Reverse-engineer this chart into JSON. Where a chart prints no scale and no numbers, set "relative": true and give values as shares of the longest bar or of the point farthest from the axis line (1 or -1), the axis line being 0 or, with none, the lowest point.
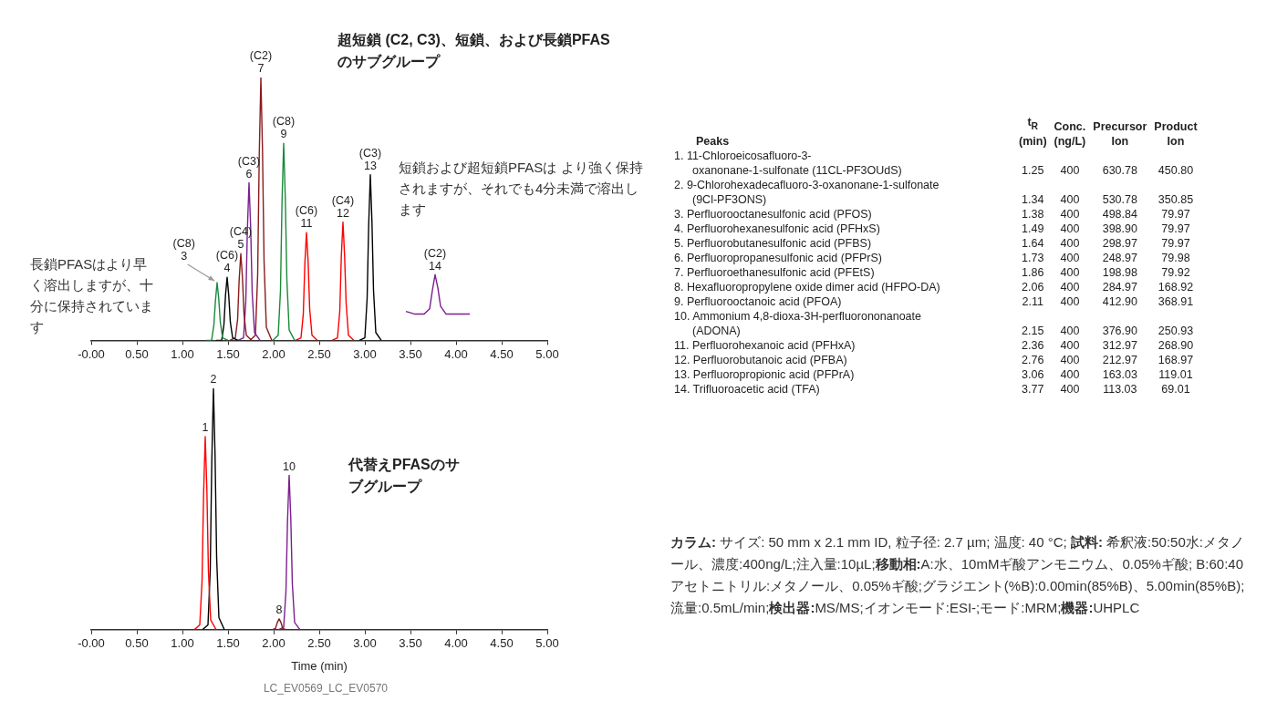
{
  "chart_data": [
    {
      "type": "line",
      "relative": true,
      "title": "超短鎖 (C2, C3)、短鎖、および長鎖PFASのサブグループ",
      "xlim": [
        0,
        5
      ],
      "xticks": [
        {
          "value": 0,
          "label": "-0.00"
        },
        {
          "value": 0.5,
          "label": "0.50"
        },
        {
          "value": 1,
          "label": "1.00"
        },
        {
          "value": 1.5,
          "label": "1.50"
        },
        {
          "value": 2,
          "label": "2.00"
        },
        {
          "value": 2.5,
          "label": "2.50"
        },
        {
          "value": 3,
          "label": "3.00"
        },
        {
          "value": 3.5,
          "label": "3.50"
        },
        {
          "value": 4,
          "label": "4.00"
        },
        {
          "value": 4.5,
          "label": "4.50"
        },
        {
          "value": 5,
          "label": "5.00"
        }
      ],
      "series": [
        {
          "color": "#1a8a3a",
          "x": [
            1.26,
            1.32,
            1.345,
            1.362,
            1.38,
            1.398,
            1.415,
            1.44,
            1.5
          ],
          "values": [
            0,
            0,
            0.06,
            0.15,
            0.22,
            0.16,
            0.07,
            0.01,
            0
          ]
        },
        {
          "color": "#000000",
          "x": [
            1.37,
            1.43,
            1.455,
            1.472,
            1.49,
            1.508,
            1.525,
            1.55,
            1.61
          ],
          "values": [
            0,
            0,
            0.06,
            0.17,
            0.24,
            0.17,
            0.07,
            0.01,
            0
          ]
        },
        {
          "color": "#8b1a1a",
          "x": [
            1.52,
            1.58,
            1.605,
            1.622,
            1.64,
            1.658,
            1.675,
            1.7,
            1.76
          ],
          "values": [
            0,
            0.01,
            0.08,
            0.23,
            0.33,
            0.24,
            0.1,
            0.02,
            0
          ]
        },
        {
          "color": "#7b1f8f",
          "x": [
            1.61,
            1.67,
            1.695,
            1.712,
            1.73,
            1.748,
            1.765,
            1.79,
            1.85
          ],
          "values": [
            0,
            0.01,
            0.15,
            0.42,
            0.6,
            0.43,
            0.18,
            0.03,
            0
          ]
        },
        {
          "color": "#8b1a1a",
          "x": [
            1.74,
            1.8,
            1.825,
            1.842,
            1.86,
            1.878,
            1.895,
            1.92,
            1.98
          ],
          "values": [
            0,
            0.02,
            0.25,
            0.7,
            1,
            0.72,
            0.3,
            0.05,
            0
          ]
        },
        {
          "color": "#1a8a3a",
          "x": [
            1.99,
            2.05,
            2.075,
            2.092,
            2.11,
            2.128,
            2.145,
            2.17,
            2.23
          ],
          "values": [
            0,
            0.02,
            0.19,
            0.53,
            0.75,
            0.54,
            0.23,
            0.04,
            0
          ]
        },
        {
          "color": "#ff0000",
          "x": [
            2.24,
            2.3,
            2.325,
            2.342,
            2.36,
            2.378,
            2.395,
            2.42,
            2.48
          ],
          "values": [
            0,
            0.01,
            0.1,
            0.29,
            0.41,
            0.3,
            0.12,
            0.02,
            0
          ]
        },
        {
          "color": "#ff0000",
          "x": [
            2.64,
            2.7,
            2.725,
            2.742,
            2.76,
            2.778,
            2.795,
            2.82,
            2.88
          ],
          "values": [
            0,
            0.01,
            0.11,
            0.32,
            0.45,
            0.32,
            0.14,
            0.02,
            0
          ]
        },
        {
          "color": "#000000",
          "x": [
            2.94,
            3,
            3.025,
            3.042,
            3.06,
            3.078,
            3.095,
            3.12,
            3.18
          ],
          "values": [
            0,
            0.01,
            0.16,
            0.44,
            0.63,
            0.45,
            0.19,
            0.03,
            0
          ]
        },
        {
          "color": "#7b1f8f",
          "x": [
            3.45,
            3.55,
            3.65,
            3.71,
            3.74,
            3.77,
            3.8,
            3.83,
            3.89,
            4.0,
            4.15
          ],
          "values": [
            0.11,
            0.1,
            0.1,
            0.12,
            0.19,
            0.25,
            0.2,
            0.13,
            0.1,
            0.1,
            0.1
          ]
        }
      ],
      "annotations": [
        "短鎖および超短鎖PFASは より強く保持されますが、それでも4分未満で溶出します",
        "長鎖PFASはより早く溶出しますが、十分に保持されています",
        {
          "text": "(C6)\n4",
          "x": 1.49,
          "y": 0.24
        },
        {
          "text": "(C4)\n5",
          "x": 1.64,
          "y": 0.33
        },
        {
          "text": "(C3)\n6",
          "x": 1.73,
          "y": 0.6
        },
        {
          "text": "(C2)\n7",
          "x": 1.86,
          "y": 1
        },
        {
          "text": "(C8)\n9",
          "x": 2.11,
          "y": 0.75
        },
        {
          "text": "(C6)\n11",
          "x": 2.36,
          "y": 0.41
        },
        {
          "text": "(C4)\n12",
          "x": 2.76,
          "y": 0.45
        },
        {
          "text": "(C3)\n13",
          "x": 3.06,
          "y": 0.63
        },
        {
          "text": "(C2)\n14",
          "x": 3.77,
          "y": 0.25
        },
        {
          "text": "(C8)\n3",
          "x": 1.38,
          "y": 0.22
        }
      ]
    },
    {
      "type": "line",
      "relative": true,
      "title": "代替えPFASのサブグループ",
      "xlabel": "Time (min)",
      "xlim": [
        0,
        5
      ],
      "xticks": [
        {
          "value": 0,
          "label": "-0.00"
        },
        {
          "value": 0.5,
          "label": "0.50"
        },
        {
          "value": 1,
          "label": "1.00"
        },
        {
          "value": 1.5,
          "label": "1.50"
        },
        {
          "value": 2,
          "label": "2.00"
        },
        {
          "value": 2.5,
          "label": "2.50"
        },
        {
          "value": 3,
          "label": "3.00"
        },
        {
          "value": 3.5,
          "label": "3.50"
        },
        {
          "value": 4,
          "label": "4.00"
        },
        {
          "value": 4.5,
          "label": "4.50"
        },
        {
          "value": 5,
          "label": "5.00"
        }
      ],
      "series": [
        {
          "color": "#ff0000",
          "x": [
            1.13,
            1.19,
            1.215,
            1.232,
            1.25,
            1.268,
            1.285,
            1.31,
            1.37
          ],
          "values": [
            0,
            0.02,
            0.2,
            0.56,
            0.8,
            0.58,
            0.24,
            0.04,
            0
          ]
        },
        {
          "color": "#000000",
          "x": [
            1.22,
            1.28,
            1.305,
            1.322,
            1.34,
            1.358,
            1.375,
            1.4,
            1.46
          ],
          "values": [
            0,
            0.02,
            0.25,
            0.7,
            1,
            0.72,
            0.3,
            0.05,
            0
          ]
        },
        {
          "color": "#8b1a1a",
          "x": [
            1.98,
            2.02,
            2.04,
            2.06,
            2.08,
            2.1,
            2.14
          ],
          "values": [
            0,
            0.005,
            0.03,
            0.045,
            0.03,
            0.005,
            0
          ]
        },
        {
          "color": "#7b1f8f",
          "x": [
            2.05,
            2.11,
            2.135,
            2.152,
            2.17,
            2.188,
            2.205,
            2.23,
            2.29
          ],
          "values": [
            0,
            0.01,
            0.16,
            0.45,
            0.64,
            0.46,
            0.19,
            0.03,
            0
          ]
        }
      ],
      "annotations": [
        "LC_EV0569_LC_EV0570",
        {
          "text": "1",
          "x": 1.25,
          "y": 0.8
        },
        {
          "text": "2",
          "x": 1.34,
          "y": 1
        },
        {
          "text": "8",
          "x": 2.06,
          "y": 0.045
        },
        {
          "text": "10",
          "x": 2.17,
          "y": 0.64
        }
      ]
    },
    {
      "type": "other",
      "title": "Peaks",
      "data_labels": true,
      "categories": [
        "1. 11-Chloroeicosafluoro-3-\noxanonane-1-sulfonate (11CL-PF3OUdS)",
        "2. 9-Chlorohexadecafluoro-3-oxanonane-1-sulfonate\n(9Cl-PF3ONS)",
        "3. Perfluorooctanesulfonic acid (PFOS)",
        "4. Perfluorohexanesulfonic acid (PFHxS)",
        "5. Perfluorobutanesulfonic acid (PFBS)",
        "6. Perfluoropropanesulfonic acid (PFPrS)",
        "7. Perfluoroethanesulfonic acid (PFEtS)",
        "8. Hexafluoropropylene oxide dimer acid (HFPO-DA)",
        "9. Perfluorooctanoic acid (PFOA)",
        "10. Ammonium 4,8-dioxa-3H-perfluorononanoate\n(ADONA)",
        "11. Perfluorohexanoic acid (PFHxA)",
        "12. Perfluorobutanoic acid (PFBA)",
        "13. Perfluoropropionic acid (PFPrA)",
        "14. Trifluoroacetic acid (TFA)"
      ],
      "series": [
        {
          "name": "t$_{R}$\n(min)",
          "values": [
            1.25,
            1.34,
            1.38,
            1.49,
            1.64,
            1.73,
            1.86,
            2.06,
            2.11,
            2.15,
            2.36,
            2.76,
            3.06,
            3.77
          ]
        },
        {
          "name": "Conc.\n(ng/L)",
          "values": [
            400,
            400,
            400,
            400,
            400,
            400,
            400,
            400,
            400,
            400,
            400,
            400,
            400,
            400
          ]
        },
        {
          "name": "Precursor\nIon",
          "values": [
            630.78,
            530.78,
            498.84,
            398.9,
            298.97,
            248.97,
            198.98,
            284.97,
            412.9,
            376.9,
            312.97,
            212.97,
            163.03,
            113.03
          ],
          "value_labels": [
            "630.78",
            "530.78",
            "498.84",
            "398.90",
            "298.97",
            "248.97",
            "198.98",
            "284.97",
            "412.90",
            "376.90",
            "312.97",
            "212.97",
            "163.03",
            "113.03"
          ]
        },
        {
          "name": "Product\nIon",
          "values": [
            450.8,
            350.85,
            79.97,
            79.97,
            79.97,
            79.98,
            79.92,
            168.92,
            368.91,
            250.93,
            268.9,
            168.97,
            119.01,
            69.01
          ],
          "value_labels": [
            "450.80",
            "350.85",
            "79.97",
            "79.97",
            "79.97",
            "79.98",
            "79.92",
            "168.92",
            "368.91",
            "250.93",
            "268.90",
            "168.97",
            "119.01",
            "69.01"
          ]
        }
      ],
      "annotations": [
        "カラム: サイズ: 50 mm x 2.1 mm ID, 粒子径: 2.7 µm; 温度: 40 °C; ",
        "試料: 希釈液:50:50水:メタノール、濃度:400ng/L;注入量:10µL;",
        "移動相:A:水、10mMギ酸アンモニウム、0.05%ギ酸; B:60:40アセトニトリル:メタノール、0.05%ギ酸;グラジエント(%B):0.00min(85%B)、5.00min(85%B);流量:0.5mL/min;",
        "検出器:MS/MS;イオンモード:ESI-;モード:MRM;",
        "機器:UHPLC"
      ]
    }
  ]
}
